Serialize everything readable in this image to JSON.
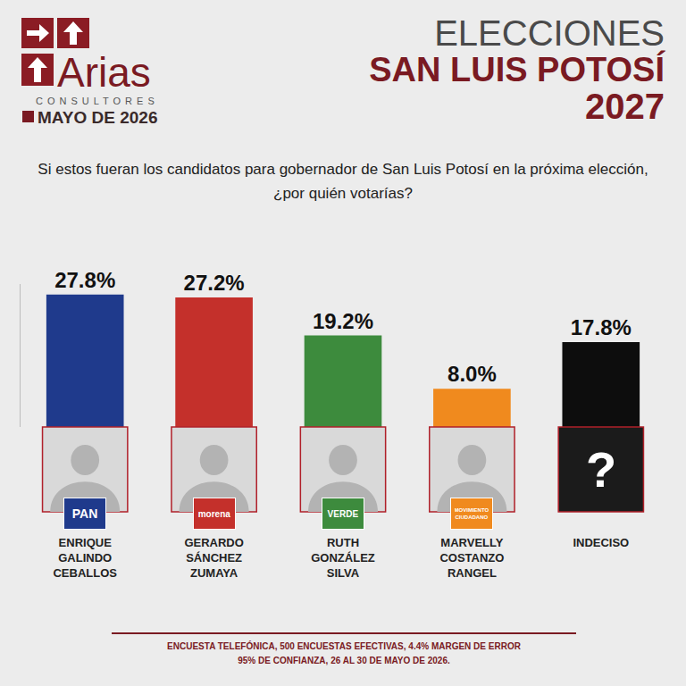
{
  "header": {
    "logo": "Arias",
    "logo_subtitle": "CONSULTORES",
    "date": "MAYO DE 2026",
    "title": [
      "ELECCIONES",
      "SAN LUIS POTOSÍ",
      "2027"
    ]
  },
  "chart_data": {
    "type": "bar",
    "subtitle": "Si estos fueran los candidatos para gobernador de San Luis Potosí en la próxima elección, ¿por quién votarías?",
    "categories": [
      "ENRIQUE GALINDO CEBALLOS",
      "GERARDO SÁNCHEZ ZUMAYA",
      "RUTH GONZÁLEZ SILVA",
      "MARVELLY COSTANZO RANGEL",
      "INDECISO"
    ],
    "values": [
      27.8,
      27.2,
      19.2,
      8.0,
      17.8
    ],
    "value_labels": [
      "27.8%",
      "27.2%",
      "19.2%",
      "8.0%",
      "17.8%"
    ],
    "colors": [
      "#1f3a8c",
      "#c4302b",
      "#3d8b3d",
      "#f08a1e",
      "#0d0d0d"
    ],
    "icons": [
      "PAN",
      "morena",
      "VERDE",
      "MOVIMIENTO CIUDADANO",
      "?"
    ],
    "ylim": [
      0,
      30
    ],
    "data_labels": true,
    "tick_labels": "x",
    "grid": false
  },
  "footer": [
    "ENCUESTA TELEFÓNICA, 500 ENCUESTAS EFECTIVAS, 4.4%  MARGEN DE ERROR",
    "95% DE CONFIANZA, 26 AL 30 DE MAYO DE 2026."
  ]
}
